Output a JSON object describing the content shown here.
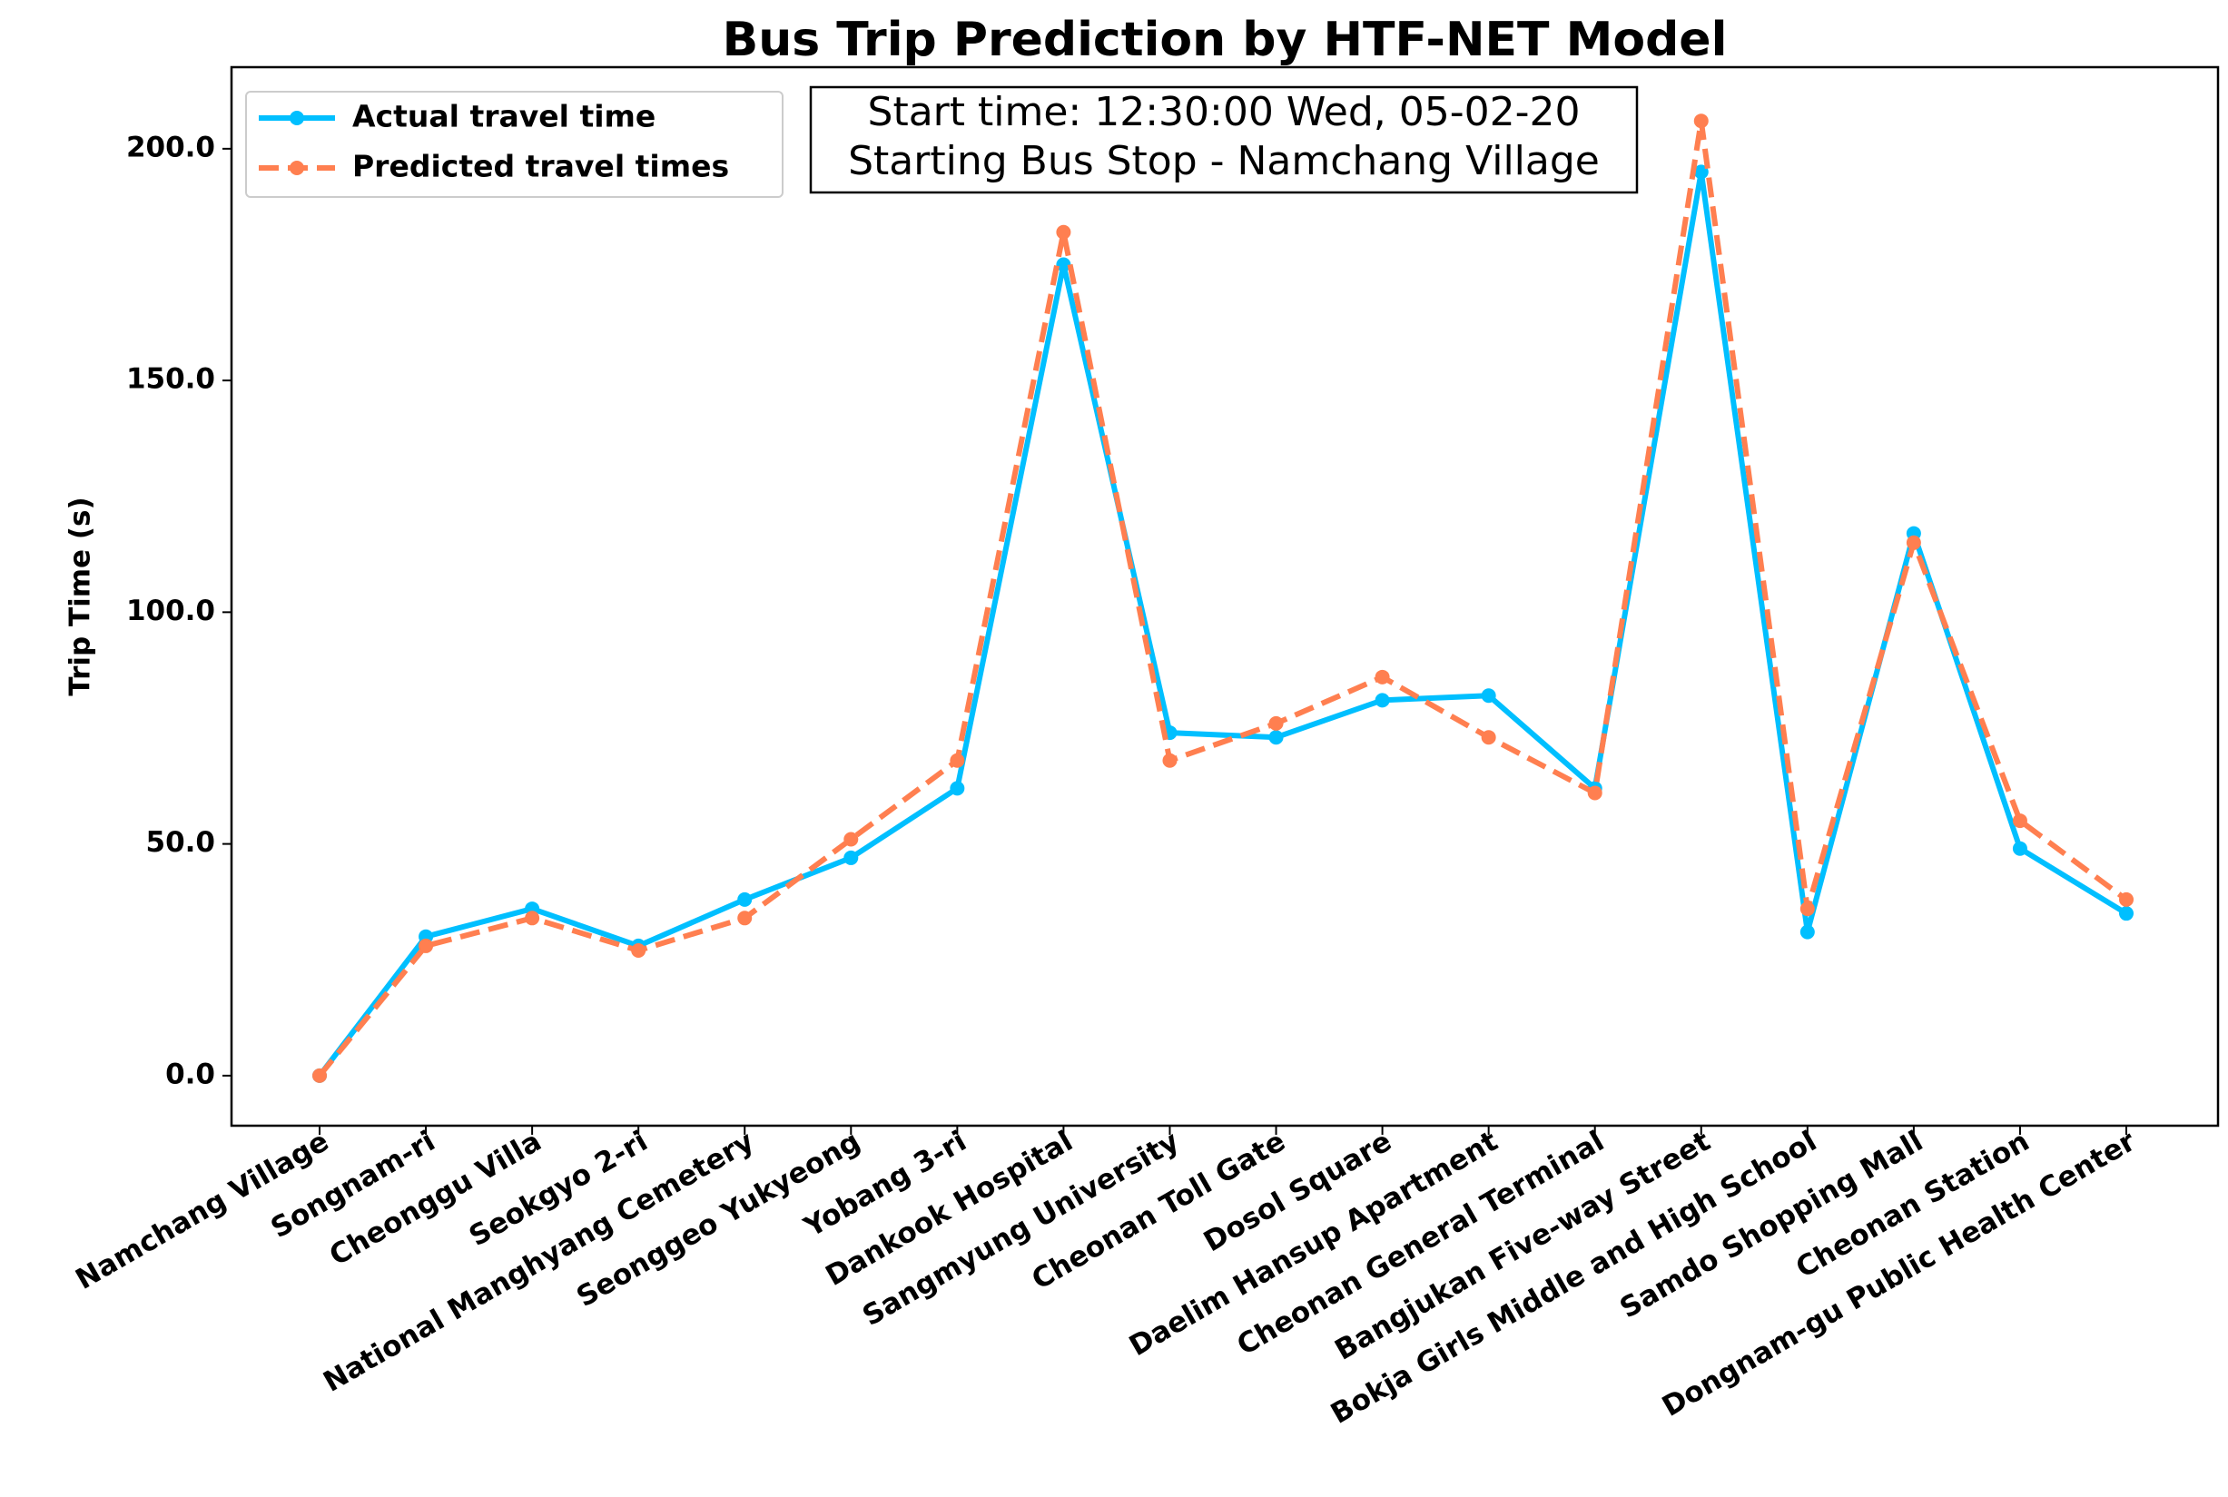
{
  "chart_data": {
    "type": "line",
    "title": "Bus Trip Prediction by HTF-NET Model",
    "y_label": "Trip Time (s)",
    "annotation": [
      "Start time: 12:30:00 Wed, 05-02-20",
      "Starting Bus Stop - Namchang Village"
    ],
    "categories": [
      "Namchang Village",
      "Songnam-ri",
      "Cheonggu Villa",
      "Seokgyo 2-ri",
      "National Manghyang Cemetery",
      "Seonggeo Yukyeong",
      "Yobang 3-ri",
      "Dankook Hospital",
      "Sangmyung University",
      "Cheonan Toll Gate",
      "Dosol Square",
      "Daelim Hansup Apartment",
      "Cheonan General Terminal",
      "Bangjukan Five-way Street",
      "Bokja Girls Middle and High School",
      "Samdo Shopping Mall",
      "Cheonan Station",
      "Dongnam-gu Public Health Center"
    ],
    "series": [
      {
        "name": "Actual travel time",
        "color": "#00bfff",
        "linestyle": "solid",
        "values": [
          0,
          30,
          36,
          28,
          38,
          47,
          62,
          175,
          74,
          73,
          81,
          82,
          62,
          195,
          31,
          117,
          49,
          35
        ]
      },
      {
        "name": "Predicted travel times",
        "color": "#ff7f50",
        "linestyle": "dashed",
        "values": [
          0,
          28,
          34,
          27,
          34,
          51,
          68,
          182,
          68,
          76,
          86,
          73,
          61,
          206,
          36,
          115,
          55,
          38
        ]
      }
    ],
    "ylim": [
      -10.8,
      217.6
    ],
    "yticks": [
      {
        "value": 0,
        "label": "0.0"
      },
      {
        "value": 50,
        "label": "50.0"
      },
      {
        "value": 100,
        "label": "100.0"
      },
      {
        "value": 150,
        "label": "150.0"
      },
      {
        "value": 200,
        "label": "200.0"
      }
    ],
    "legend": "upper left"
  }
}
